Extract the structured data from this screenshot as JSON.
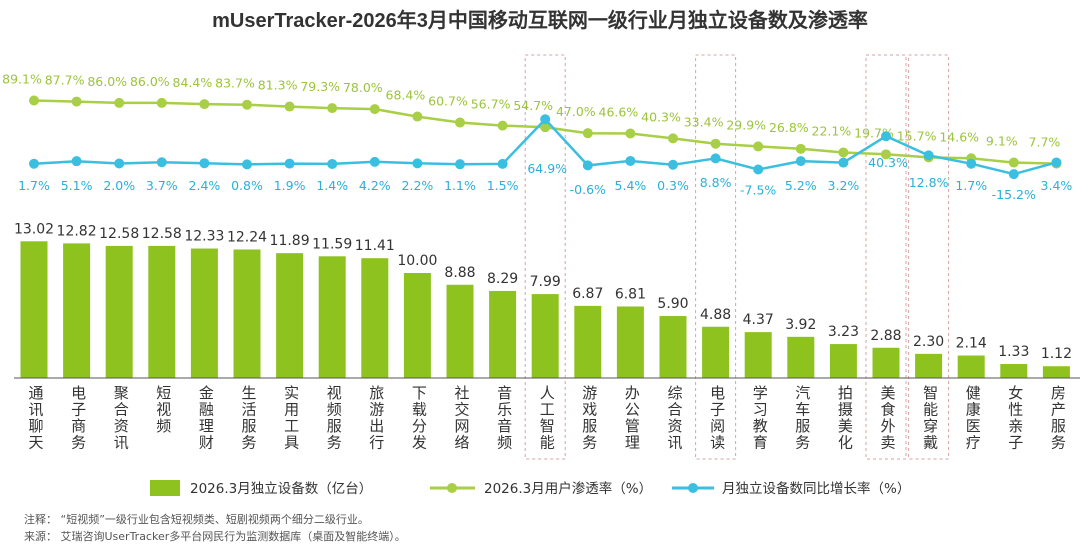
{
  "chart_data": {
    "type": "bar+line",
    "title": "mUserTracker-2026年3月中国移动互联网一级行业月独立设备数及渗透率",
    "categories": [
      "通讯聊天",
      "电子商务",
      "聚合资讯",
      "短视频",
      "金融理财",
      "生活服务",
      "实用工具",
      "视频服务",
      "旅游出行",
      "下载分发",
      "社交网络",
      "音乐音频",
      "人工智能",
      "游戏服务",
      "办公管理",
      "综合资讯",
      "电子阅读",
      "学习教育",
      "汽车服务",
      "拍摄美化",
      "美食外卖",
      "智能穿戴",
      "健康医疗",
      "女性亲子",
      "房产服务"
    ],
    "highlighted_categories": [
      "人工智能",
      "电子阅读",
      "美食外卖",
      "智能穿戴"
    ],
    "series": [
      {
        "name": "2026.3月独立设备数（亿台）",
        "type": "bar",
        "color": "#8dc21f",
        "values": [
          13.02,
          12.82,
          12.58,
          12.58,
          12.33,
          12.24,
          11.89,
          11.59,
          11.41,
          10.0,
          8.88,
          8.29,
          7.99,
          6.87,
          6.81,
          5.9,
          4.88,
          4.37,
          3.92,
          3.23,
          2.88,
          2.3,
          2.14,
          1.33,
          1.12
        ],
        "labels": [
          "13.02",
          "12.82",
          "12.58",
          "12.58",
          "12.33",
          "12.24",
          "11.89",
          "11.59",
          "11.41",
          "10.00",
          "8.88",
          "8.29",
          "7.99",
          "6.87",
          "6.81",
          "5.90",
          "4.88",
          "4.37",
          "3.92",
          "3.23",
          "2.88",
          "2.30",
          "2.14",
          "1.33",
          "1.12"
        ]
      },
      {
        "name": "2026.3月用户渗透率（%）",
        "type": "line",
        "color": "#a8cf45",
        "values": [
          89.1,
          87.7,
          86.0,
          86.0,
          84.4,
          83.7,
          81.3,
          79.3,
          78.0,
          68.4,
          60.7,
          56.7,
          54.7,
          47.0,
          46.6,
          40.3,
          33.4,
          29.9,
          26.8,
          22.1,
          19.7,
          15.7,
          14.6,
          9.1,
          7.7
        ],
        "labels": [
          "89.1%",
          "87.7%",
          "86.0%",
          "86.0%",
          "84.4%",
          "83.7%",
          "81.3%",
          "79.3%",
          "78.0%",
          "68.4%",
          "60.7%",
          "56.7%",
          "54.7%",
          "47.0%",
          "46.6%",
          "40.3%",
          "33.4%",
          "29.9%",
          "26.8%",
          "22.1%",
          "19.7%",
          "15.7%",
          "14.6%",
          "9.1%",
          "7.7%"
        ]
      },
      {
        "name": "月独立设备数同比增长率（%）",
        "type": "line",
        "color": "#3bbfe0",
        "values": [
          1.7,
          5.1,
          2.0,
          3.7,
          2.4,
          0.8,
          1.9,
          1.4,
          4.2,
          2.2,
          1.1,
          1.5,
          64.9,
          -0.6,
          5.4,
          0.3,
          8.8,
          -7.5,
          5.2,
          3.2,
          40.3,
          12.8,
          1.7,
          -15.2,
          3.4
        ],
        "labels": [
          "1.7%",
          "5.1%",
          "2.0%",
          "3.7%",
          "2.4%",
          "0.8%",
          "1.9%",
          "1.4%",
          "4.2%",
          "2.2%",
          "1.1%",
          "1.5%",
          "64.9%",
          "-0.6%",
          "5.4%",
          "0.3%",
          "8.8%",
          "-7.5%",
          "5.2%",
          "3.2%",
          "40.3%",
          "12.8%",
          "1.7%",
          "-15.2%",
          "3.4%"
        ]
      }
    ],
    "legend_position": "bottom",
    "grid": false
  },
  "notes": {
    "note1": "注释：  “短视频”一级行业包含短视频类、短剧视频两个细分二级行业。",
    "note2": "来源：  艾瑞咨询UserTracker多平台网民行为监测数据库（桌面及智能终端）。"
  }
}
